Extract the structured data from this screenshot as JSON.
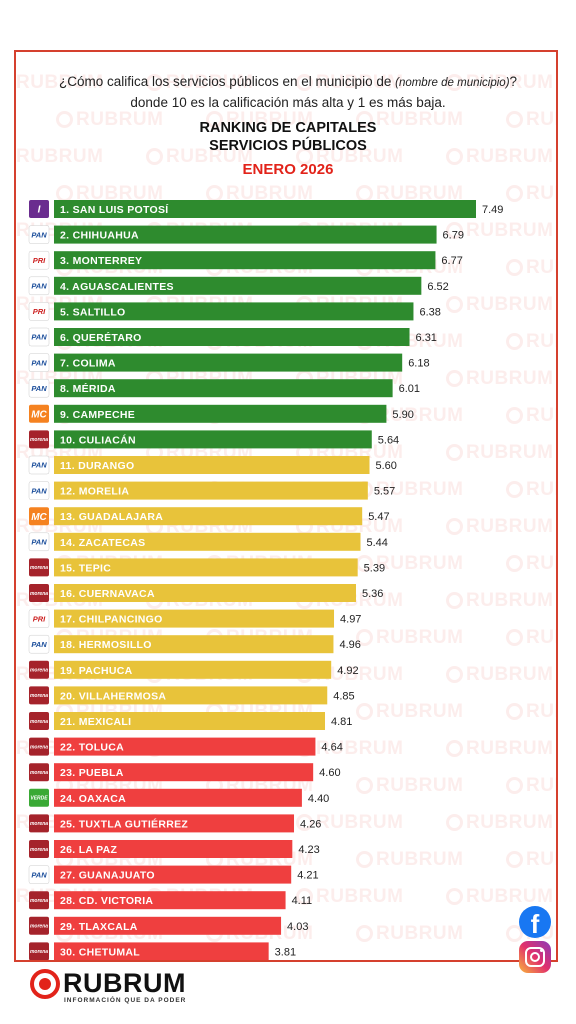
{
  "header": {
    "question_part1": "¿Cómo califica los servicios públicos en el municipio de ",
    "question_italic": "(nombre de municipio)",
    "question_part2": "? donde 10 es la calificación más alta y 1 es más baja.",
    "title_line1": "RANKING DE CAPITALES",
    "title_line2": "SERVICIOS PÚBLICOS",
    "title_line3": "ENERO 2026"
  },
  "watermark": "RUBRUM",
  "brand": {
    "name": "RUBRUM",
    "tagline": "INFORMACIÓN QUE DA PODER"
  },
  "social": {
    "facebook_glyph": "f"
  },
  "colors": {
    "accent_red": "#e2231a",
    "green": "#2e8b2e",
    "yellow": "#e8c33a",
    "red": "#ef3f3f",
    "border": "#d5402e"
  },
  "parties": {
    "PAN": {
      "label": "PAN",
      "bg": "#ffffff",
      "fg": "#1b4e9b"
    },
    "PRI": {
      "label": "PRI",
      "bg": "#ffffff",
      "fg": "#cc1f1f"
    },
    "MORENA": {
      "label": "morena",
      "bg": "#a5232b",
      "fg": "#ffffff"
    },
    "MC": {
      "label": "MC",
      "bg": "#f58220",
      "fg": "#ffffff"
    },
    "VERDE": {
      "label": "VERDE",
      "bg": "#3aa935",
      "fg": "#ffffff"
    },
    "IND": {
      "label": "I",
      "bg": "#6a2c8f",
      "fg": "#ffffff"
    }
  },
  "chart_data": {
    "type": "bar",
    "orientation": "horizontal",
    "title": "RANKING DE CAPITALES SERVICIOS PÚBLICOS",
    "subtitle": "ENERO 2026",
    "xlim": [
      0,
      7.49
    ],
    "grid": false,
    "categories": [
      "1. SAN LUIS POTOSÍ",
      "2. CHIHUAHUA",
      "3. MONTERREY",
      "4. AGUASCALIENTES",
      "5. SALTILLO",
      "6. QUERÉTARO",
      "7. COLIMA",
      "8. MÉRIDA",
      "9. CAMPECHE",
      "10. CULIACÁN",
      "11. DURANGO",
      "12. MORELIA",
      "13. GUADALAJARA",
      "14. ZACATECAS",
      "15. TEPIC",
      "16. CUERNAVACA",
      "17. CHILPANCINGO",
      "18. HERMOSILLO",
      "19. PACHUCA",
      "20. VILLAHERMOSA",
      "21. MEXICALI",
      "22. TOLUCA",
      "23. PUEBLA",
      "24. OAXACA",
      "25. TUXTLA GUTIÉRREZ",
      "26. LA PAZ",
      "27. GUANAJUATO",
      "28. CD. VICTORIA",
      "29. TLAXCALA",
      "30. CHETUMAL"
    ],
    "values": [
      7.49,
      6.79,
      6.77,
      6.52,
      6.38,
      6.31,
      6.18,
      6.01,
      5.9,
      5.64,
      5.6,
      5.57,
      5.47,
      5.44,
      5.39,
      5.36,
      4.97,
      4.96,
      4.92,
      4.85,
      4.81,
      4.64,
      4.6,
      4.4,
      4.26,
      4.23,
      4.21,
      4.11,
      4.03,
      3.81
    ],
    "value_labels": [
      "7.49",
      "6.79",
      "6.77",
      "6.52",
      "6.38",
      "6.31",
      "6.18",
      "6.01",
      "5.90",
      "5.64",
      "5.60",
      "5.57",
      "5.47",
      "5.44",
      "5.39",
      "5.36",
      "4.97",
      "4.96",
      "4.92",
      "4.85",
      "4.81",
      "4.64",
      "4.60",
      "4.40",
      "4.26",
      "4.23",
      "4.21",
      "4.11",
      "4.03",
      "3.81"
    ],
    "bar_colors": [
      "green",
      "green",
      "green",
      "green",
      "green",
      "green",
      "green",
      "green",
      "green",
      "green",
      "yellow",
      "yellow",
      "yellow",
      "yellow",
      "yellow",
      "yellow",
      "yellow",
      "yellow",
      "yellow",
      "yellow",
      "yellow",
      "red",
      "red",
      "red",
      "red",
      "red",
      "red",
      "red",
      "red",
      "red"
    ],
    "parties": [
      "IND",
      "PAN",
      "PRI",
      "PAN",
      "PRI",
      "PAN",
      "PAN",
      "PAN",
      "MC",
      "MORENA",
      "PAN",
      "PAN",
      "MC",
      "PAN",
      "MORENA",
      "MORENA",
      "PRI",
      "PAN",
      "MORENA",
      "MORENA",
      "MORENA",
      "MORENA",
      "MORENA",
      "VERDE",
      "MORENA",
      "MORENA",
      "PAN",
      "MORENA",
      "MORENA",
      "MORENA"
    ]
  }
}
